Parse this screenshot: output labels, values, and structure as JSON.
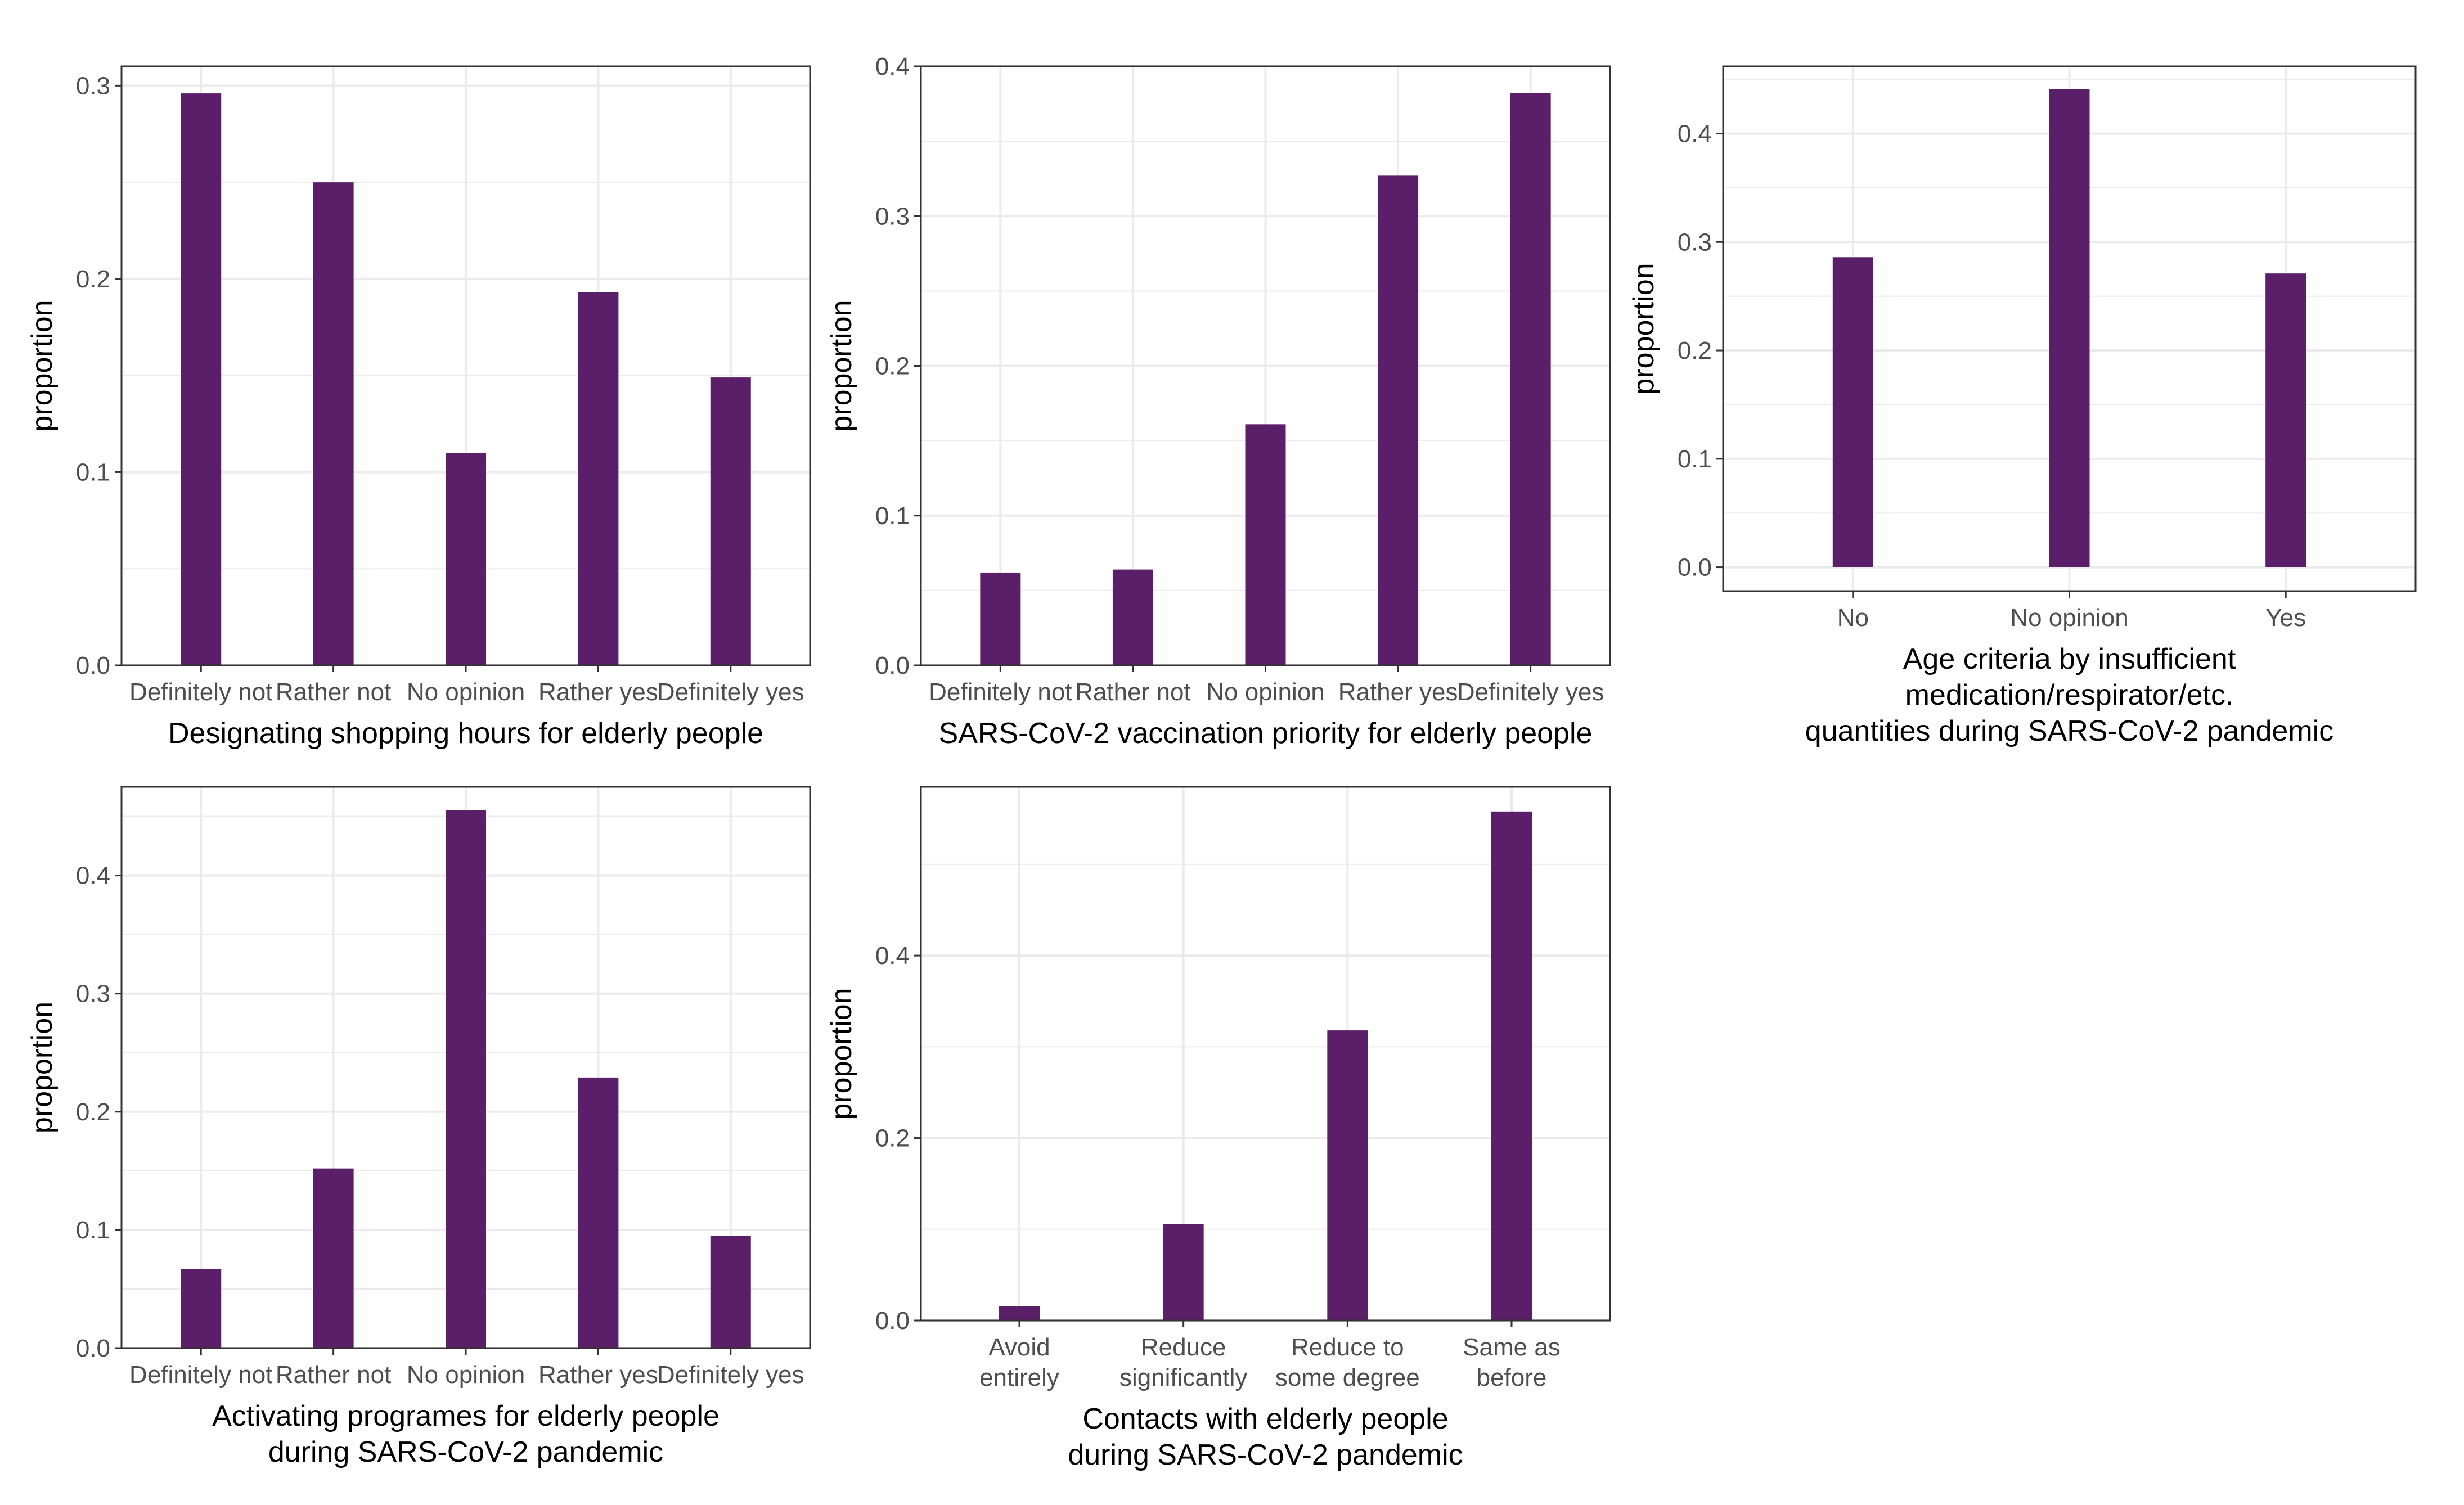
{
  "bar_color": "#5b1f69",
  "grid_color": "#ebebeb",
  "panel_border_color": "#333333",
  "chart_data": [
    {
      "type": "bar",
      "categories": [
        "Definitely not",
        "Rather not",
        "No opinion",
        "Rather yes",
        "Definitely yes"
      ],
      "category_lines": [
        [
          "Definitely not"
        ],
        [
          "Rather not"
        ],
        [
          "No opinion"
        ],
        [
          "Rather yes"
        ],
        [
          "Definitely yes"
        ]
      ],
      "values": [
        0.296,
        0.25,
        0.11,
        0.193,
        0.149
      ],
      "ylim": [
        0,
        0.31
      ],
      "yticks": [
        0.0,
        0.1,
        0.2,
        0.3
      ],
      "ytick_labels": [
        "0.0",
        "0.1",
        "0.2",
        "0.3"
      ],
      "ylabel": "proportion",
      "xlabel_lines": [
        "Designating shopping hours for elderly people"
      ]
    },
    {
      "type": "bar",
      "categories": [
        "Definitely not",
        "Rather not",
        "No opinion",
        "Rather yes",
        "Definitely yes"
      ],
      "category_lines": [
        [
          "Definitely not"
        ],
        [
          "Rather not"
        ],
        [
          "No opinion"
        ],
        [
          "Rather yes"
        ],
        [
          "Definitely yes"
        ]
      ],
      "values": [
        0.062,
        0.064,
        0.161,
        0.327,
        0.382
      ],
      "ylim": [
        0,
        0.4
      ],
      "yticks": [
        0.0,
        0.1,
        0.2,
        0.3,
        0.4
      ],
      "ytick_labels": [
        "0.0",
        "0.1",
        "0.2",
        "0.3",
        "0.4"
      ],
      "ylabel": "proportion",
      "xlabel_lines": [
        "SARS-CoV-2 vaccination priority for elderly people"
      ]
    },
    {
      "type": "bar",
      "categories": [
        "No",
        "No opinion",
        "Yes"
      ],
      "category_lines": [
        [
          "No"
        ],
        [
          "No opinion"
        ],
        [
          "Yes"
        ]
      ],
      "values": [
        0.286,
        0.441,
        0.271
      ],
      "ylim": [
        -0.022,
        0.462
      ],
      "yticks": [
        0.0,
        0.1,
        0.2,
        0.3,
        0.4
      ],
      "ytick_labels": [
        "0.0",
        "0.1",
        "0.2",
        "0.3",
        "0.4"
      ],
      "ylabel": "proportion",
      "xlabel_lines": [
        "Age criteria by insufficient",
        "medication/respirator/etc.",
        "quantities during SARS-CoV-2 pandemic"
      ]
    },
    {
      "type": "bar",
      "categories": [
        "Definitely not",
        "Rather not",
        "No opinion",
        "Rather yes",
        "Definitely yes"
      ],
      "category_lines": [
        [
          "Definitely not"
        ],
        [
          "Rather not"
        ],
        [
          "No opinion"
        ],
        [
          "Rather yes"
        ],
        [
          "Definitely yes"
        ]
      ],
      "values": [
        0.067,
        0.152,
        0.455,
        0.229,
        0.095
      ],
      "ylim": [
        0,
        0.475
      ],
      "yticks": [
        0.0,
        0.1,
        0.2,
        0.3,
        0.4
      ],
      "ytick_labels": [
        "0.0",
        "0.1",
        "0.2",
        "0.3",
        "0.4"
      ],
      "ylabel": "proportion",
      "xlabel_lines": [
        "Activating programes for elderly people",
        "during SARS-CoV-2 pandemic"
      ]
    },
    {
      "type": "bar",
      "categories": [
        "Avoid entirely",
        "Reduce significantly",
        "Reduce to some degree",
        "Same as before"
      ],
      "category_lines": [
        [
          "Avoid",
          "entirely"
        ],
        [
          "Reduce",
          "significantly"
        ],
        [
          "Reduce to",
          "some degree"
        ],
        [
          "Same as",
          "before"
        ]
      ],
      "values": [
        0.016,
        0.106,
        0.318,
        0.558
      ],
      "ylim": [
        0,
        0.585
      ],
      "yticks": [
        0.0,
        0.2,
        0.4
      ],
      "ytick_labels": [
        "0.0",
        "0.2",
        "0.4"
      ],
      "ylabel": "proportion",
      "xlabel_lines": [
        "Contacts with elderly people",
        "during SARS-CoV-2 pandemic"
      ]
    }
  ]
}
